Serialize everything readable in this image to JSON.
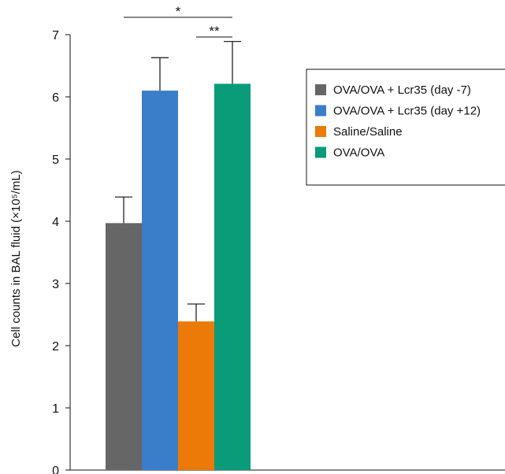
{
  "chart_data": {
    "type": "bar",
    "ylabel": "Cell counts in BAL fluid (×10⁵/mL)",
    "ylim": [
      0,
      7
    ],
    "yticks": [
      "0",
      "1",
      "2",
      "3",
      "4",
      "5",
      "6",
      "7"
    ],
    "series": [
      {
        "name": "OVA/OVA + Lcr35 (day -7)",
        "value": 3.97,
        "error": 0.42,
        "color": "#666666"
      },
      {
        "name": "OVA/OVA + Lcr35 (day +12)",
        "value": 6.1,
        "error": 0.53,
        "color": "#3a7dc9"
      },
      {
        "name": "Saline/Saline",
        "value": 2.39,
        "error": 0.28,
        "color": "#ec7a08"
      },
      {
        "name": "OVA/OVA",
        "value": 6.21,
        "error": 0.68,
        "color": "#0a9b78"
      }
    ],
    "significance": [
      {
        "label": "*",
        "from_series": 0,
        "to_series": 3
      },
      {
        "label": "**",
        "from_series": 2,
        "to_series": 3
      }
    ],
    "legend_position": "right"
  }
}
